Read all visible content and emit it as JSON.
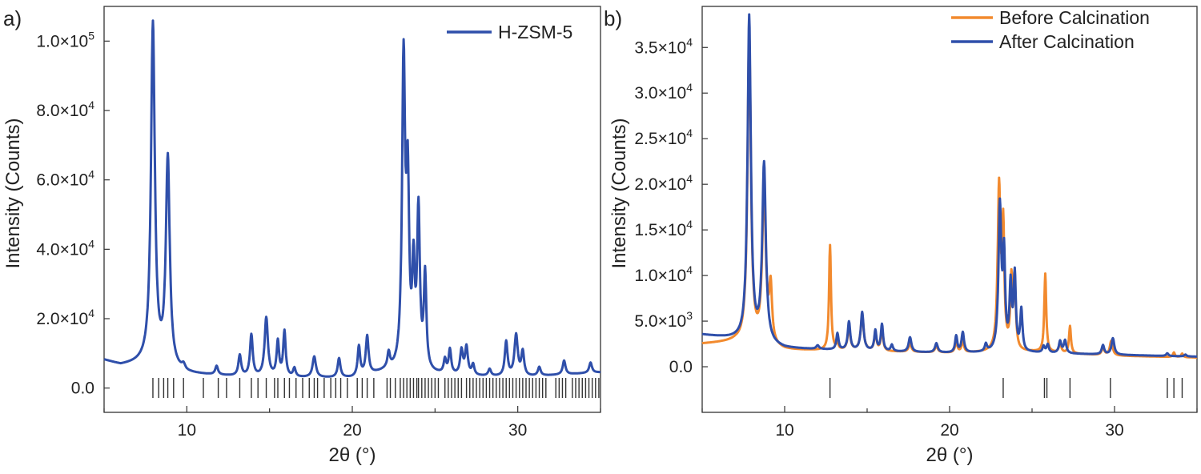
{
  "chart_data": [
    {
      "type": "line",
      "panel_label": "a)",
      "xlabel": "2θ (°)",
      "ylabel": "Intensity (Counts)",
      "xlim": [
        5,
        35
      ],
      "ylim": [
        -7000,
        110000
      ],
      "xticks": [
        10,
        20,
        30
      ],
      "yticks": [
        {
          "value": 0,
          "label": "0.0"
        },
        {
          "value": 20000,
          "label": "2.0×10",
          "exp": "4"
        },
        {
          "value": 40000,
          "label": "4.0×10",
          "exp": "4"
        },
        {
          "value": 60000,
          "label": "6.0×10",
          "exp": "4"
        },
        {
          "value": 80000,
          "label": "8.0×10",
          "exp": "4"
        },
        {
          "value": 100000,
          "label": "1.0×10",
          "exp": "5"
        }
      ],
      "legend_position": "top-right",
      "series": [
        {
          "name": "H-ZSM-5",
          "color": "#2f4faa",
          "baseline": [
            [
              5,
              8000
            ],
            [
              6,
              6500
            ],
            [
              7.5,
              7000
            ],
            [
              10,
              4000
            ],
            [
              14,
              3000
            ],
            [
              20,
              2800
            ],
            [
              22,
              4500
            ],
            [
              26,
              3500
            ],
            [
              30,
              3000
            ],
            [
              35,
              4500
            ]
          ],
          "peaks": [
            [
              7.95,
              98000,
              0.14
            ],
            [
              8.85,
              60000,
              0.14
            ],
            [
              9.8,
              1500,
              0.12
            ],
            [
              11.8,
              2500,
              0.1
            ],
            [
              13.2,
              6000,
              0.1
            ],
            [
              13.9,
              12000,
              0.1
            ],
            [
              14.8,
              17000,
              0.12
            ],
            [
              15.5,
              10000,
              0.09
            ],
            [
              15.9,
              13000,
              0.09
            ],
            [
              16.5,
              2500,
              0.09
            ],
            [
              17.7,
              6000,
              0.12
            ],
            [
              19.2,
              5500,
              0.1
            ],
            [
              20.4,
              8500,
              0.09
            ],
            [
              20.9,
              11000,
              0.1
            ],
            [
              22.2,
              4500,
              0.09
            ],
            [
              23.1,
              88000,
              0.11
            ],
            [
              23.35,
              50000,
              0.1
            ],
            [
              23.7,
              27000,
              0.09
            ],
            [
              24.0,
              45000,
              0.1
            ],
            [
              24.4,
              27000,
              0.09
            ],
            [
              25.6,
              4000,
              0.09
            ],
            [
              25.9,
              7000,
              0.09
            ],
            [
              26.6,
              7000,
              0.1
            ],
            [
              26.9,
              8000,
              0.1
            ],
            [
              27.3,
              3000,
              0.09
            ],
            [
              28.3,
              2000,
              0.1
            ],
            [
              29.3,
              10000,
              0.1
            ],
            [
              29.9,
              12000,
              0.12
            ],
            [
              30.3,
              7000,
              0.1
            ],
            [
              31.3,
              2500,
              0.1
            ],
            [
              32.8,
              4000,
              0.1
            ],
            [
              34.4,
              3000,
              0.1
            ]
          ]
        }
      ],
      "reference_ticks": [
        7.95,
        8.3,
        8.6,
        8.85,
        9.2,
        9.8,
        11.0,
        11.9,
        12.4,
        13.2,
        13.9,
        14.3,
        14.8,
        15.3,
        15.5,
        15.9,
        16.2,
        16.6,
        17.0,
        17.4,
        17.7,
        17.9,
        18.3,
        18.7,
        19.0,
        19.3,
        19.7,
        20.3,
        20.6,
        20.9,
        21.3,
        22.1,
        22.3,
        22.6,
        22.9,
        23.1,
        23.3,
        23.5,
        23.7,
        23.9,
        24.0,
        24.2,
        24.4,
        24.6,
        24.8,
        25.0,
        25.2,
        25.6,
        25.8,
        26.0,
        26.2,
        26.4,
        26.6,
        26.9,
        27.1,
        27.3,
        27.5,
        27.7,
        27.9,
        28.1,
        28.3,
        28.5,
        28.7,
        28.9,
        29.1,
        29.3,
        29.5,
        29.7,
        29.9,
        30.1,
        30.3,
        30.5,
        30.7,
        30.9,
        31.1,
        31.3,
        31.5,
        31.7,
        32.3,
        32.5,
        32.7,
        32.9,
        33.3,
        33.5,
        33.7,
        33.9,
        34.1,
        34.3,
        34.5,
        34.7,
        34.9
      ]
    },
    {
      "type": "line",
      "panel_label": "b)",
      "xlabel": "2θ (°)",
      "ylabel": "Intensity (Counts)",
      "xlim": [
        5,
        35
      ],
      "ylim": [
        -5000,
        39500
      ],
      "xticks": [
        10,
        20,
        30
      ],
      "yticks": [
        {
          "value": 0,
          "label": "0.0"
        },
        {
          "value": 5000,
          "label": "5.0×10",
          "exp": "3"
        },
        {
          "value": 10000,
          "label": "1.0×10",
          "exp": "4"
        },
        {
          "value": 15000,
          "label": "1.5×10",
          "exp": "4"
        },
        {
          "value": 20000,
          "label": "2.0×10",
          "exp": "4"
        },
        {
          "value": 25000,
          "label": "2.5×10",
          "exp": "4"
        },
        {
          "value": 30000,
          "label": "3.0×10",
          "exp": "4"
        },
        {
          "value": 35000,
          "label": "3.5×10",
          "exp": "4"
        }
      ],
      "legend_position": "top-right",
      "series": [
        {
          "name": "Before Calcination",
          "color": "#f28a2e",
          "baseline": [
            [
              5,
              2500
            ],
            [
              7,
              2700
            ],
            [
              10,
              1800
            ],
            [
              15,
              1700
            ],
            [
              20,
              1500
            ],
            [
              25,
              1600
            ],
            [
              30,
              1200
            ],
            [
              35,
              1000
            ]
          ],
          "peaks": [
            [
              7.85,
              34000,
              0.12
            ],
            [
              8.75,
              17000,
              0.13
            ],
            [
              9.15,
              6000,
              0.1
            ],
            [
              12.75,
              11500,
              0.07
            ],
            [
              13.2,
              600,
              0.08
            ],
            [
              13.9,
              2400,
              0.1
            ],
            [
              14.7,
              3800,
              0.11
            ],
            [
              15.5,
              2000,
              0.08
            ],
            [
              15.9,
              2400,
              0.08
            ],
            [
              17.6,
              900,
              0.1
            ],
            [
              19.2,
              700,
              0.1
            ],
            [
              20.4,
              1200,
              0.08
            ],
            [
              20.8,
              1300,
              0.08
            ],
            [
              23.0,
              17800,
              0.1
            ],
            [
              23.25,
              13000,
              0.08
            ],
            [
              23.75,
              7500,
              0.08
            ],
            [
              23.95,
              7000,
              0.08
            ],
            [
              25.8,
              8600,
              0.07
            ],
            [
              26.7,
              1000,
              0.09
            ],
            [
              27.3,
              3000,
              0.07
            ],
            [
              29.3,
              800,
              0.09
            ],
            [
              29.8,
              1600,
              0.1
            ],
            [
              33.6,
              500,
              0.07
            ],
            [
              34.1,
              400,
              0.07
            ]
          ]
        },
        {
          "name": "After Calcination",
          "color": "#2f4faa",
          "baseline": [
            [
              5,
              3500
            ],
            [
              7,
              3000
            ],
            [
              10,
              2000
            ],
            [
              15,
              1700
            ],
            [
              20,
              1500
            ],
            [
              25,
              1500
            ],
            [
              30,
              1300
            ],
            [
              35,
              1100
            ]
          ],
          "peaks": [
            [
              7.85,
              35500,
              0.12
            ],
            [
              8.75,
              19500,
              0.13
            ],
            [
              12.0,
              400,
              0.1
            ],
            [
              13.2,
              1800,
              0.08
            ],
            [
              13.9,
              3100,
              0.09
            ],
            [
              14.7,
              4200,
              0.1
            ],
            [
              15.5,
              2200,
              0.08
            ],
            [
              15.9,
              2900,
              0.08
            ],
            [
              16.5,
              700,
              0.08
            ],
            [
              17.6,
              1600,
              0.1
            ],
            [
              19.2,
              1000,
              0.1
            ],
            [
              20.4,
              1800,
              0.08
            ],
            [
              20.8,
              2200,
              0.09
            ],
            [
              22.2,
              800,
              0.08
            ],
            [
              23.05,
              15800,
              0.1
            ],
            [
              23.3,
              10000,
              0.08
            ],
            [
              23.7,
              7000,
              0.08
            ],
            [
              23.95,
              8200,
              0.08
            ],
            [
              24.35,
              4500,
              0.08
            ],
            [
              25.7,
              700,
              0.08
            ],
            [
              25.95,
              900,
              0.08
            ],
            [
              26.7,
              1300,
              0.09
            ],
            [
              27.0,
              1400,
              0.09
            ],
            [
              29.3,
              1000,
              0.09
            ],
            [
              29.9,
              1800,
              0.1
            ],
            [
              33.2,
              300,
              0.08
            ],
            [
              34.3,
              200,
              0.08
            ]
          ]
        }
      ],
      "reference_ticks": [
        12.75,
        23.25,
        25.75,
        25.9,
        27.3,
        29.75,
        33.2,
        33.6,
        34.1
      ]
    }
  ]
}
